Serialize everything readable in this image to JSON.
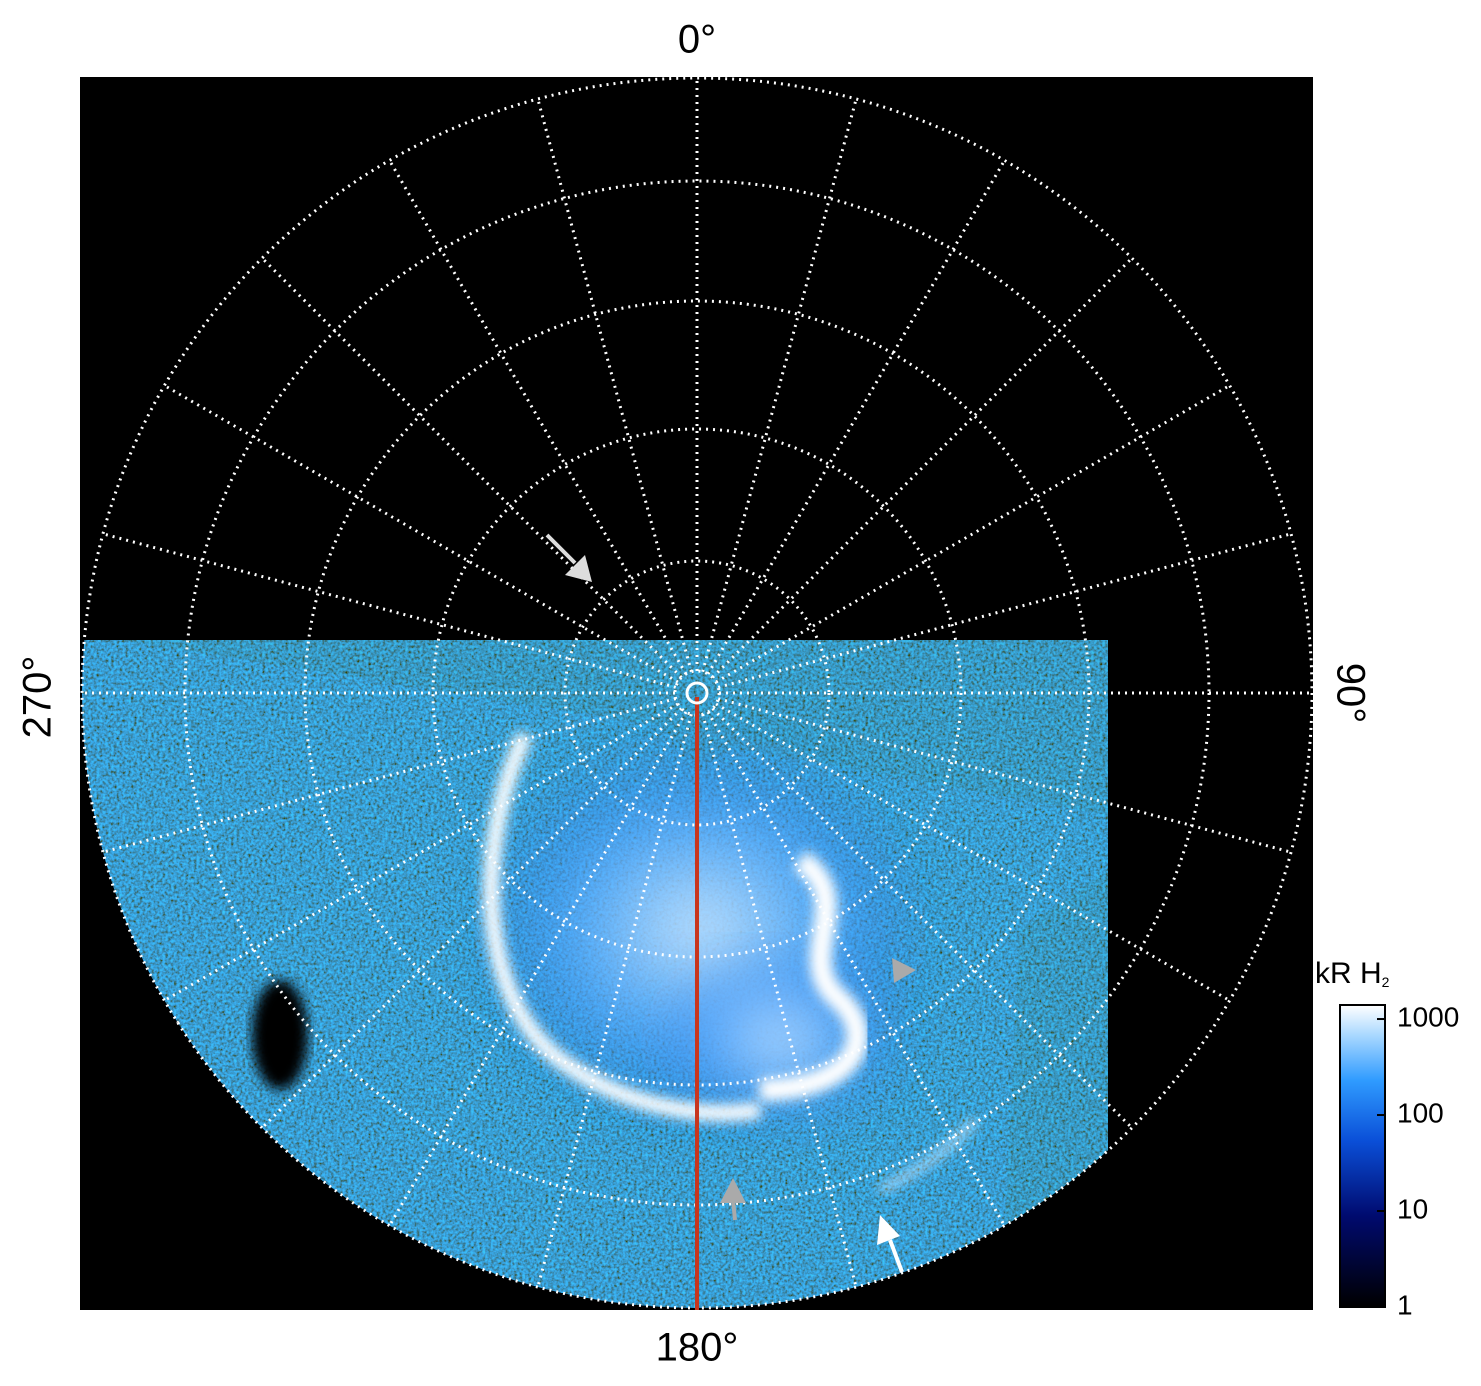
{
  "chart_data": {
    "type": "polar-image",
    "angle_labels": {
      "top": "0°",
      "right": "90°",
      "bottom": "180°",
      "left": "270°"
    },
    "colorbar": {
      "label": "kR H",
      "label_subscript": "2",
      "log_scale": true,
      "ylim": [
        1,
        1400
      ],
      "yticks": [
        1,
        10,
        100,
        1000
      ]
    }
  }
}
